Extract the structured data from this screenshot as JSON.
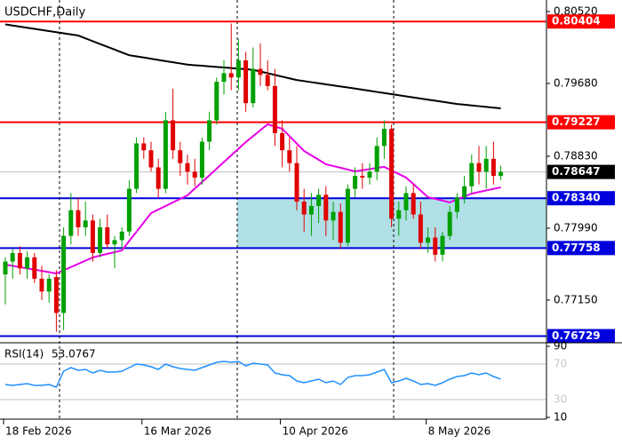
{
  "chart_data": {
    "type": "candlestick",
    "title": "USDCHF,Daily",
    "categories": [
      "18 Feb 2026",
      null,
      null,
      null,
      null,
      null,
      null,
      null,
      null,
      null,
      null,
      null,
      null,
      null,
      null,
      null,
      null,
      null,
      null,
      "16 Mar 2026",
      null,
      null,
      null,
      null,
      null,
      null,
      null,
      null,
      null,
      null,
      null,
      null,
      null,
      null,
      null,
      null,
      null,
      null,
      "10 Apr 2026",
      null,
      null,
      null,
      null,
      null,
      null,
      null,
      null,
      null,
      null,
      null,
      null,
      null,
      null,
      null,
      null,
      null,
      null,
      null,
      "8 May 2026",
      null,
      null,
      null,
      null,
      null,
      null,
      null,
      null,
      null,
      null
    ],
    "open": [
      0.7745,
      0.776,
      0.777,
      0.7752,
      0.7765,
      0.774,
      0.7725,
      0.7742,
      0.77,
      0.779,
      0.782,
      0.78,
      0.7808,
      0.777,
      0.78,
      0.778,
      0.7785,
      0.7795,
      0.7845,
      0.7898,
      0.789,
      0.787,
      0.7845,
      0.7925,
      0.789,
      0.7875,
      0.7865,
      0.7858,
      0.79,
      0.7925,
      0.797,
      0.798,
      0.7975,
      0.7995,
      0.7945,
      0.7985,
      0.7978,
      0.7965,
      0.791,
      0.789,
      0.7875,
      0.783,
      0.7815,
      0.7825,
      0.7838,
      0.7808,
      0.7818,
      0.7782,
      0.7845,
      0.786,
      0.7858,
      0.7865,
      0.7895,
      0.7915,
      0.781,
      0.782,
      0.784,
      0.7815,
      0.7782,
      0.7788,
      0.7768,
      0.779,
      0.7818,
      0.7835,
      0.7848,
      0.7875,
      0.7865,
      0.788,
      0.786
    ],
    "high": [
      0.7765,
      0.7775,
      0.7778,
      0.7772,
      0.777,
      0.7755,
      0.7745,
      0.775,
      0.78,
      0.784,
      0.7835,
      0.783,
      0.7815,
      0.781,
      0.7815,
      0.779,
      0.78,
      0.7855,
      0.7905,
      0.7905,
      0.79,
      0.788,
      0.7935,
      0.7962,
      0.79,
      0.7885,
      0.788,
      0.7905,
      0.7935,
      0.7975,
      0.7995,
      0.8038,
      0.802,
      0.8005,
      0.801,
      0.8015,
      0.7995,
      0.7985,
      0.7925,
      0.7905,
      0.7895,
      0.7845,
      0.784,
      0.7845,
      0.7848,
      0.783,
      0.7828,
      0.785,
      0.787,
      0.7875,
      0.7875,
      0.7905,
      0.7925,
      0.792,
      0.783,
      0.7848,
      0.785,
      0.783,
      0.78,
      0.78,
      0.7795,
      0.7825,
      0.784,
      0.786,
      0.7885,
      0.7895,
      0.7895,
      0.79,
      0.7872
    ],
    "low": [
      0.771,
      0.774,
      0.7745,
      0.774,
      0.7735,
      0.7715,
      0.7712,
      0.7678,
      0.768,
      0.778,
      0.779,
      0.779,
      0.776,
      0.7765,
      0.7775,
      0.7752,
      0.7775,
      0.779,
      0.784,
      0.788,
      0.7865,
      0.7835,
      0.784,
      0.788,
      0.786,
      0.785,
      0.7848,
      0.785,
      0.789,
      0.792,
      0.7955,
      0.796,
      0.796,
      0.7935,
      0.794,
      0.7965,
      0.796,
      0.7895,
      0.787,
      0.7865,
      0.782,
      0.7795,
      0.779,
      0.7805,
      0.779,
      0.7785,
      0.7775,
      0.7778,
      0.7835,
      0.7845,
      0.785,
      0.7855,
      0.788,
      0.78,
      0.779,
      0.7808,
      0.781,
      0.7775,
      0.777,
      0.776,
      0.776,
      0.7785,
      0.781,
      0.7828,
      0.784,
      0.785,
      0.7845,
      0.785,
      0.7855
    ],
    "close": [
      0.776,
      0.777,
      0.7752,
      0.7765,
      0.774,
      0.7725,
      0.774,
      0.77,
      0.779,
      0.782,
      0.78,
      0.7808,
      0.777,
      0.78,
      0.778,
      0.7785,
      0.7795,
      0.7845,
      0.7898,
      0.789,
      0.787,
      0.7845,
      0.7925,
      0.789,
      0.7875,
      0.7865,
      0.7858,
      0.79,
      0.7925,
      0.797,
      0.798,
      0.7975,
      0.7995,
      0.7945,
      0.7985,
      0.7978,
      0.7965,
      0.791,
      0.789,
      0.7875,
      0.783,
      0.7815,
      0.7825,
      0.7838,
      0.7808,
      0.7818,
      0.7782,
      0.7845,
      0.786,
      0.7858,
      0.7865,
      0.7895,
      0.7915,
      0.781,
      0.782,
      0.784,
      0.7815,
      0.7782,
      0.7788,
      0.7768,
      0.779,
      0.7818,
      0.7835,
      0.7848,
      0.7875,
      0.7865,
      0.788,
      0.786,
      0.78647
    ],
    "up_color": "#00a000",
    "down_color": "#e00000",
    "lines": [
      {
        "color": "#000000",
        "values": [
          0.8037,
          0.80357,
          0.80344,
          0.80331,
          0.80318,
          0.80305,
          0.80292,
          0.80279,
          0.80266,
          0.80253,
          0.8024,
          0.80207,
          0.80174,
          0.80141,
          0.80109,
          0.80076,
          0.80043,
          0.8001,
          0.79996,
          0.79983,
          0.79969,
          0.79955,
          0.79941,
          0.79928,
          0.79914,
          0.799,
          0.79893,
          0.79887,
          0.7988,
          0.79873,
          0.79867,
          0.7986,
          0.79853,
          0.79847,
          0.7984,
          0.7982,
          0.798,
          0.7978,
          0.7976,
          0.7974,
          0.7972,
          0.79708,
          0.79695,
          0.79683,
          0.7967,
          0.79658,
          0.79645,
          0.79633,
          0.7962,
          0.79607,
          0.79594,
          0.79581,
          0.79569,
          0.79556,
          0.79543,
          0.7953,
          0.79517,
          0.79504,
          0.79491,
          0.79479,
          0.79466,
          0.79453,
          0.7944,
          0.79432,
          0.79423,
          0.79415,
          0.79407,
          0.79398,
          0.7939
        ]
      },
      {
        "color": "#e600e6",
        "values": [
          0.77565,
          0.7755,
          0.77535,
          0.7752,
          0.77506,
          0.77491,
          0.77476,
          0.77461,
          0.77498,
          0.77536,
          0.77573,
          0.77611,
          0.77648,
          0.77669,
          0.7769,
          0.7771,
          0.77731,
          0.7784,
          0.77948,
          0.78057,
          0.78166,
          0.78208,
          0.78249,
          0.78291,
          0.78332,
          0.78374,
          0.78452,
          0.78529,
          0.78607,
          0.78685,
          0.78763,
          0.7884,
          0.78918,
          0.78996,
          0.79065,
          0.79134,
          0.79203,
          0.79177,
          0.79151,
          0.79065,
          0.78978,
          0.78892,
          0.7884,
          0.78789,
          0.78737,
          0.78716,
          0.78696,
          0.78675,
          0.78654,
          0.78667,
          0.7868,
          0.78693,
          0.78706,
          0.78664,
          0.78623,
          0.78581,
          0.78505,
          0.78429,
          0.78353,
          0.78332,
          0.78312,
          0.78291,
          0.78325,
          0.7836,
          0.78394,
          0.78412,
          0.78431,
          0.78449,
          0.78467
        ]
      }
    ],
    "levels": [
      {
        "value": 0.80404,
        "color": "#ff0000"
      },
      {
        "value": 0.79227,
        "color": "#ff0000"
      },
      {
        "value": 0.7834,
        "label": "0.78340",
        "color": "#0000dd"
      },
      {
        "value": 0.77758,
        "color": "#0000dd"
      },
      {
        "value": 0.76729,
        "color": "#0000dd"
      }
    ],
    "zone_color": "#b0e0e6",
    "current": 0.78647,
    "ylim": [
      0.76662,
      0.80655
    ],
    "yticks": [
      {
        "value": 0.8052,
        "label": "0.80520"
      },
      {
        "value": 0.7968,
        "label": "0.79680"
      },
      {
        "value": 0.7883,
        "label": "0.78830"
      },
      {
        "value": 0.7799,
        "label": "0.77990"
      },
      {
        "value": 0.7715,
        "label": "0.77150"
      }
    ],
    "rsi": {
      "title": "RSI(14)",
      "value": 53.0767,
      "color": "#1e90ff",
      "ylim": [
        8,
        93
      ],
      "yticks": [
        90,
        10
      ],
      "levels": [
        70,
        30
      ],
      "values": [
        47,
        46,
        47,
        48,
        46,
        46,
        47,
        44,
        62,
        66,
        63,
        64,
        60,
        63,
        61,
        61,
        62,
        66,
        70,
        69,
        67,
        64,
        70,
        67,
        65,
        64,
        63,
        66,
        69,
        72,
        73,
        72,
        73,
        68,
        71,
        70,
        69,
        60,
        58,
        57,
        51,
        49,
        51,
        53,
        49,
        51,
        47,
        55,
        57,
        57,
        58,
        61,
        64,
        49,
        51,
        54,
        51,
        47,
        48,
        46,
        49,
        53,
        56,
        57,
        60,
        58,
        60,
        56,
        53.0767
      ]
    }
  }
}
